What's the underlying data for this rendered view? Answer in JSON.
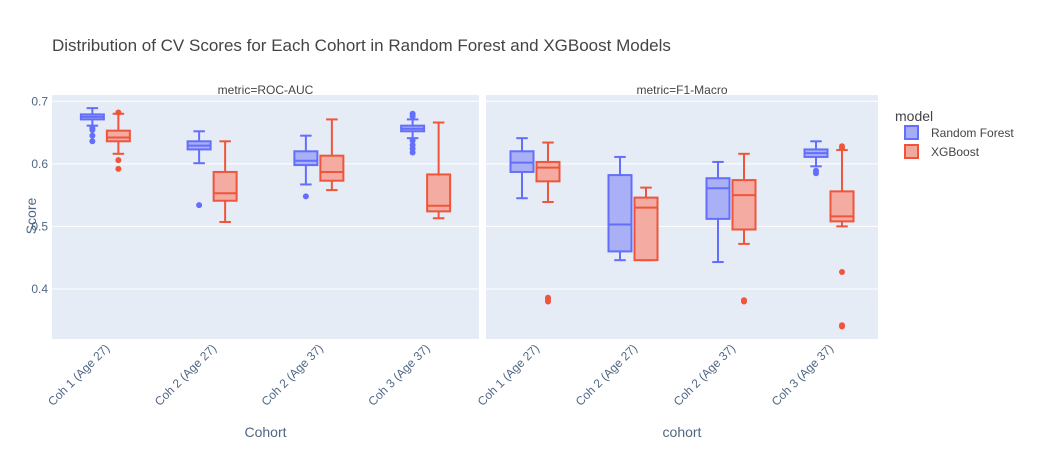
{
  "chart_data": {
    "type": "box",
    "title": "Distribution of CV Scores for Each Cohort in Random Forest and XGBoost Models",
    "ylabel": "Score",
    "ylim": [
      0.32,
      0.71
    ],
    "yticks": [
      0.4,
      0.5,
      0.6,
      0.7
    ],
    "grid": true,
    "legend": {
      "title": "model",
      "position": "right",
      "entries": [
        {
          "name": "Random Forest",
          "color": "#636efa",
          "fill": "#a6adf6"
        },
        {
          "name": "XGBoost",
          "color": "#ef553b",
          "fill": "#f4a89c"
        }
      ]
    },
    "panels": [
      {
        "title": "metric=ROC-AUC",
        "xlabel": "Cohort",
        "categories": [
          "Coh 1 (Age 27)",
          "Coh 2 (Age 27)",
          "Coh 2 (Age 37)",
          "Coh 3 (Age 37)"
        ],
        "series": [
          {
            "name": "Random Forest",
            "boxes": [
              {
                "lower": 0.661,
                "q1": 0.671,
                "median": 0.675,
                "q3": 0.679,
                "upper": 0.689,
                "outliers": [
                  0.657,
                  0.654,
                  0.645,
                  0.636
                ]
              },
              {
                "lower": 0.601,
                "q1": 0.623,
                "median": 0.629,
                "q3": 0.636,
                "upper": 0.652,
                "outliers": [
                  0.534
                ]
              },
              {
                "lower": 0.567,
                "q1": 0.598,
                "median": 0.605,
                "q3": 0.62,
                "upper": 0.645,
                "outliers": [
                  0.548
                ]
              },
              {
                "lower": 0.641,
                "q1": 0.652,
                "median": 0.656,
                "q3": 0.661,
                "upper": 0.671,
                "outliers": [
                  0.68,
                  0.676,
                  0.637,
                  0.63,
                  0.624,
                  0.618
                ]
              }
            ]
          },
          {
            "name": "XGBoost",
            "boxes": [
              {
                "lower": 0.616,
                "q1": 0.636,
                "median": 0.642,
                "q3": 0.653,
                "upper": 0.68,
                "outliers": [
                  0.682,
                  0.606,
                  0.592
                ]
              },
              {
                "lower": 0.507,
                "q1": 0.541,
                "median": 0.553,
                "q3": 0.587,
                "upper": 0.636,
                "outliers": []
              },
              {
                "lower": 0.558,
                "q1": 0.573,
                "median": 0.587,
                "q3": 0.613,
                "upper": 0.671,
                "outliers": []
              },
              {
                "lower": 0.513,
                "q1": 0.524,
                "median": 0.533,
                "q3": 0.583,
                "upper": 0.666,
                "outliers": []
              }
            ]
          }
        ]
      },
      {
        "title": "metric=F1-Macro",
        "xlabel": "cohort",
        "categories": [
          "Coh 1 (Age 27)",
          "Coh 2 (Age 27)",
          "Coh 2 (Age 37)",
          "Coh 3 (Age 37)"
        ],
        "series": [
          {
            "name": "Random Forest",
            "boxes": [
              {
                "lower": 0.545,
                "q1": 0.587,
                "median": 0.602,
                "q3": 0.62,
                "upper": 0.641,
                "outliers": []
              },
              {
                "lower": 0.446,
                "q1": 0.46,
                "median": 0.503,
                "q3": 0.582,
                "upper": 0.611,
                "outliers": []
              },
              {
                "lower": 0.443,
                "q1": 0.512,
                "median": 0.561,
                "q3": 0.577,
                "upper": 0.603,
                "outliers": []
              },
              {
                "lower": 0.596,
                "q1": 0.611,
                "median": 0.617,
                "q3": 0.623,
                "upper": 0.636,
                "outliers": [
                  0.589,
                  0.585
                ]
              }
            ]
          },
          {
            "name": "XGBoost",
            "boxes": [
              {
                "lower": 0.539,
                "q1": 0.572,
                "median": 0.594,
                "q3": 0.603,
                "upper": 0.634,
                "outliers": [
                  0.386,
                  0.383,
                  0.38
                ]
              },
              {
                "lower": 0.446,
                "q1": 0.446,
                "median": 0.53,
                "q3": 0.546,
                "upper": 0.562,
                "outliers": []
              },
              {
                "lower": 0.472,
                "q1": 0.495,
                "median": 0.55,
                "q3": 0.574,
                "upper": 0.616,
                "outliers": [
                  0.382,
                  0.38
                ]
              },
              {
                "lower": 0.5,
                "q1": 0.508,
                "median": 0.516,
                "q3": 0.556,
                "upper": 0.622,
                "outliers": [
                  0.628,
                  0.625,
                  0.427,
                  0.342,
                  0.34
                ]
              }
            ]
          }
        ]
      }
    ]
  }
}
